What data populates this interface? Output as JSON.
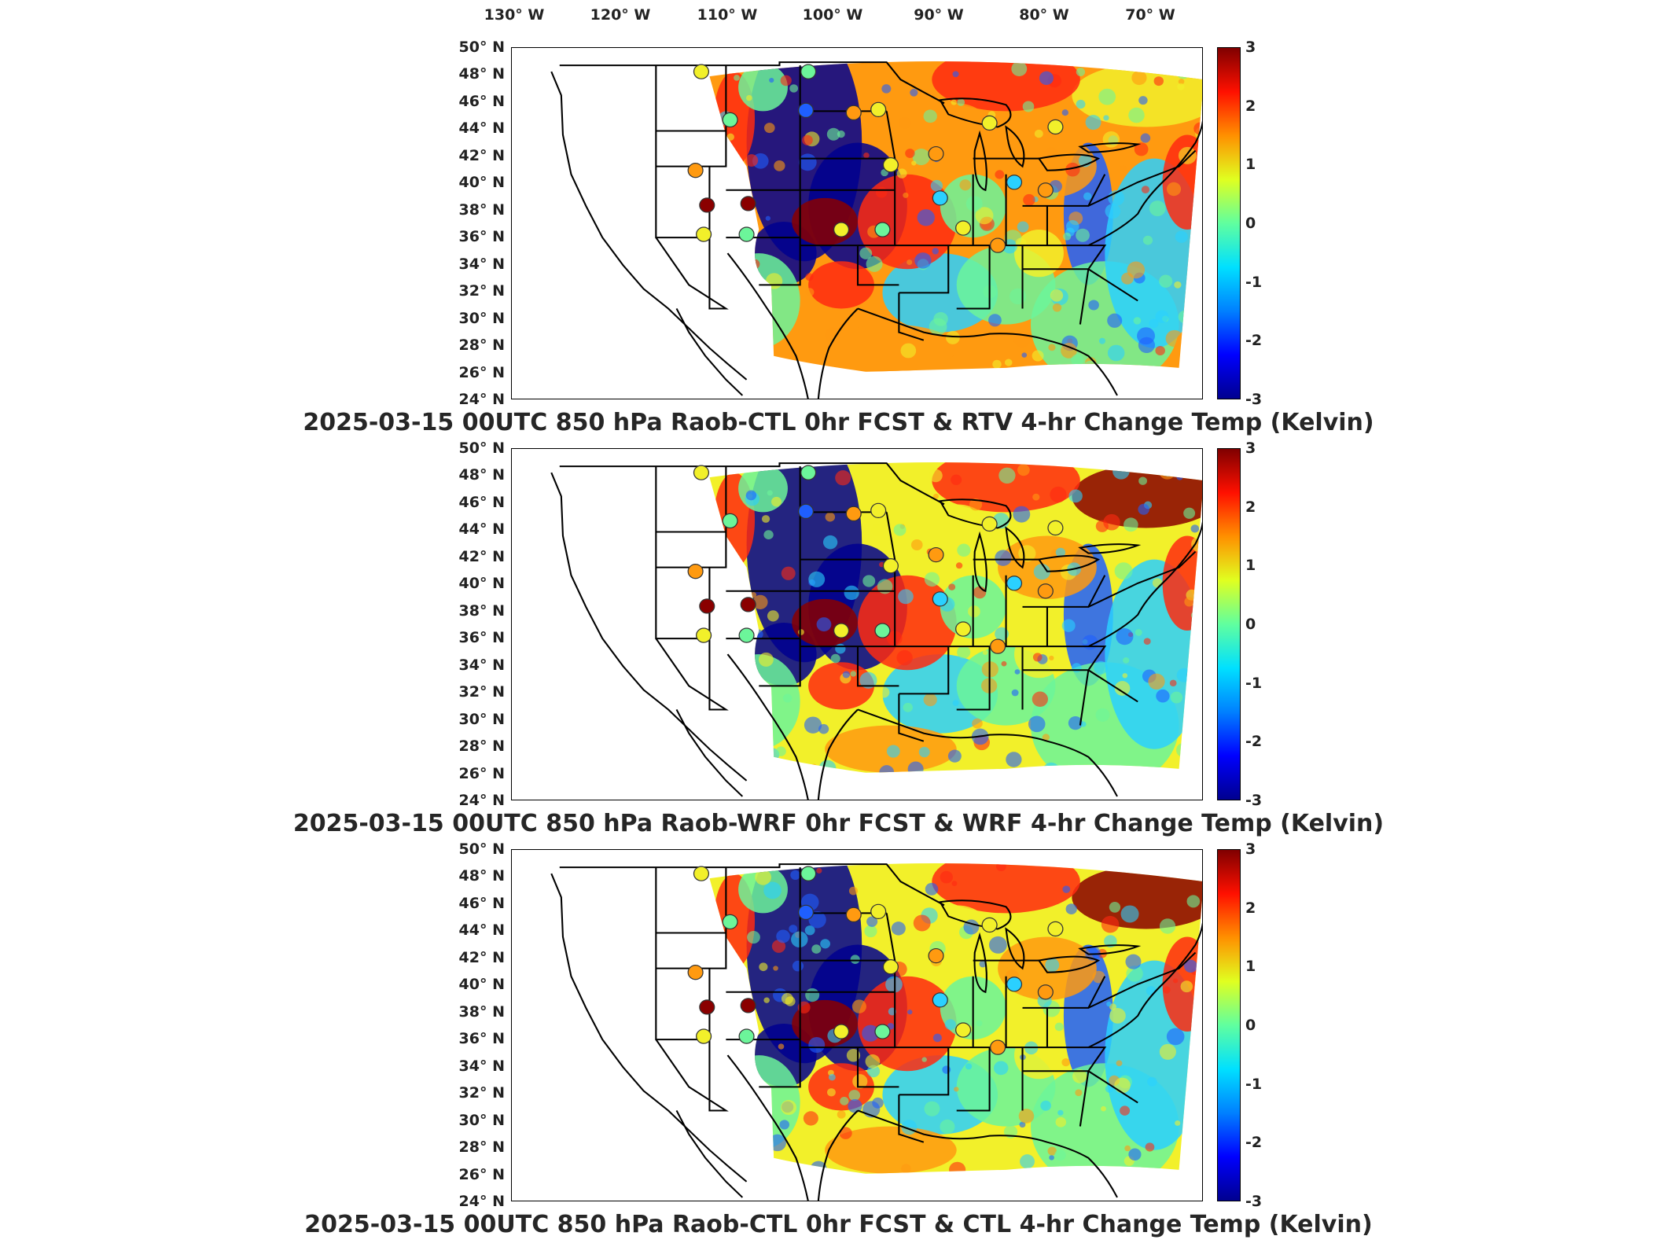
{
  "lon_labels": [
    "130° W",
    "120° W",
    "110° W",
    "100° W",
    "90° W",
    "80° W",
    "70° W"
  ],
  "lat_labels": [
    "50° N",
    "48° N",
    "46° N",
    "44° N",
    "42° N",
    "40° N",
    "38° N",
    "36° N",
    "34° N",
    "32° N",
    "30° N",
    "28° N",
    "26° N",
    "24° N"
  ],
  "colorbar": {
    "ticks": [
      "3",
      "2",
      "1",
      "0",
      "-1",
      "-2",
      "-3"
    ],
    "unit": "Kelvin",
    "range": [
      -3,
      3
    ]
  },
  "panels": [
    {
      "title": "2025-03-15 00UTC 850 hPa Raob-CTL 0hr FCST & RTV 4-hr Change Temp (Kelvin)"
    },
    {
      "title": "2025-03-15 00UTC 850 hPa Raob-WRF 0hr FCST & WRF 4-hr Change Temp (Kelvin)"
    },
    {
      "title": "2025-03-15 00UTC 850 hPa Raob-CTL 0hr FCST & CTL 4-hr Change Temp (Kelvin)"
    }
  ],
  "colors": {
    "dark_blue": "#00008f",
    "blue": "#1f5fff",
    "cyan": "#2ad0ff",
    "green": "#6cf59a",
    "yellow": "#f2f02a",
    "orange": "#ff9a10",
    "red": "#ff2a10",
    "dark_red": "#8a0000"
  }
}
